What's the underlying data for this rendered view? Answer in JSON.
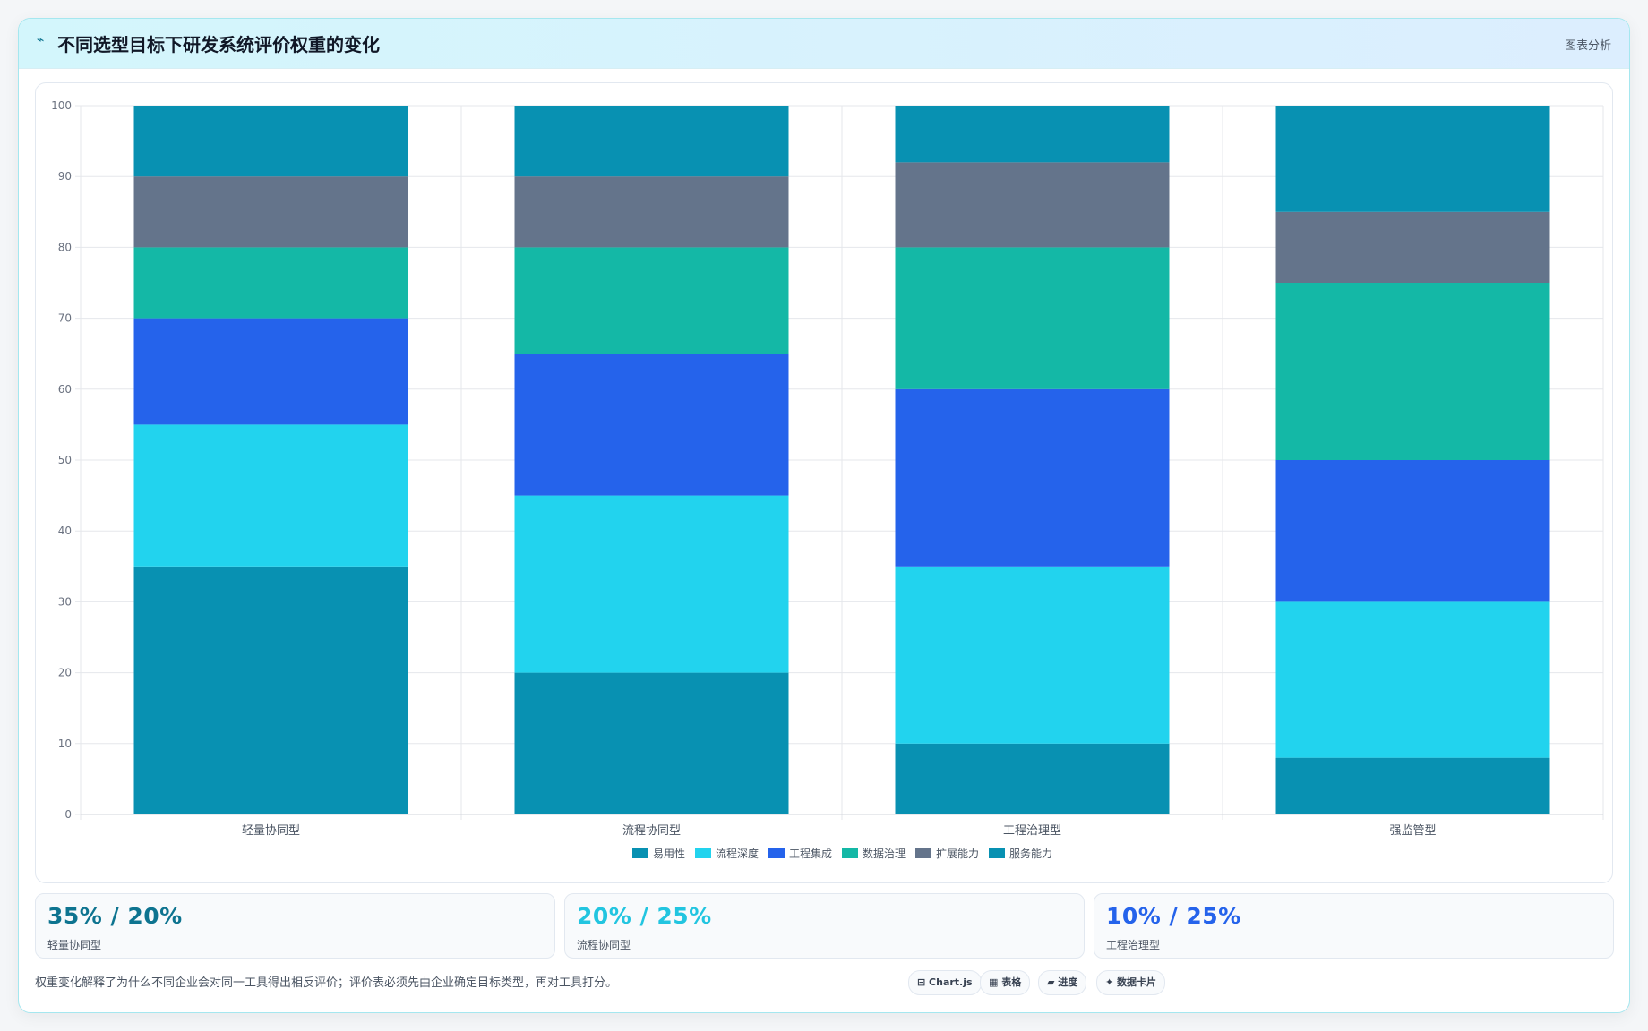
{
  "header": {
    "logo": "⌁",
    "title": "不同选型目标下研发系统评价权重的变化",
    "link": "图表分析"
  },
  "chart_data": {
    "type": "bar",
    "stacked": true,
    "categories": [
      "轻量协同型",
      "流程协同型",
      "工程治理型",
      "强监管型"
    ],
    "series": [
      {
        "name": "易用性",
        "color": "#0891b2",
        "values": [
          35,
          20,
          10,
          8
        ]
      },
      {
        "name": "流程深度",
        "color": "#22d3ee",
        "values": [
          20,
          25,
          25,
          22
        ]
      },
      {
        "name": "工程集成",
        "color": "#2563eb",
        "values": [
          15,
          20,
          25,
          20
        ]
      },
      {
        "name": "数据治理",
        "color": "#14b8a6",
        "values": [
          10,
          15,
          20,
          25
        ]
      },
      {
        "name": "扩展能力",
        "color": "#64748b",
        "values": [
          10,
          10,
          12,
          10
        ]
      },
      {
        "name": "服务能力",
        "color": "#0891b2",
        "values": [
          10,
          10,
          8,
          15
        ]
      }
    ],
    "ylim": [
      0,
      100
    ],
    "yticks": [
      0,
      10,
      20,
      30,
      40,
      50,
      60,
      70,
      80,
      90,
      100
    ],
    "grid": true,
    "legend": "bottom"
  },
  "stats": [
    {
      "value": "35% / 20%",
      "label": "轻量协同型",
      "color": "#0e7490"
    },
    {
      "value": "20% / 25%",
      "label": "流程协同型",
      "color": "#22c5e0"
    },
    {
      "value": "10% / 25%",
      "label": "工程治理型",
      "color": "#2563eb"
    }
  ],
  "footer": {
    "note": "权重变化解释了为什么不同企业会对同一工具得出相反评价；评价表必须先由企业确定目标类型，再对工具打分。",
    "chips": [
      "⊟ Chart.js",
      "▦ 表格",
      "▰ 进度",
      "✦ 数据卡片"
    ]
  }
}
